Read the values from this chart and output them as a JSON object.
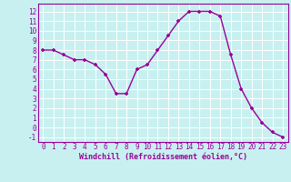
{
  "x": [
    0,
    1,
    2,
    3,
    4,
    5,
    6,
    7,
    8,
    9,
    10,
    11,
    12,
    13,
    14,
    15,
    16,
    17,
    18,
    19,
    20,
    21,
    22,
    23
  ],
  "y": [
    8,
    8,
    7.5,
    7,
    7,
    6.5,
    5.5,
    3.5,
    3.5,
    6,
    6.5,
    8,
    9.5,
    11,
    12,
    12,
    12,
    11.5,
    7.5,
    4,
    2,
    0.5,
    -0.5,
    -1
  ],
  "line_color": "#990099",
  "marker": "+",
  "bg_color": "#c8f0f0",
  "xlabel": "Windchill (Refroidissement éolien,°C)",
  "xlabel_color": "#990099",
  "tick_color": "#990099",
  "grid_color": "#ffffff",
  "ylim": [
    -1.5,
    12.8
  ],
  "xlim": [
    -0.5,
    23.5
  ],
  "yticks": [
    -1,
    0,
    1,
    2,
    3,
    4,
    5,
    6,
    7,
    8,
    9,
    10,
    11,
    12
  ],
  "xticks": [
    0,
    1,
    2,
    3,
    4,
    5,
    6,
    7,
    8,
    9,
    10,
    11,
    12,
    13,
    14,
    15,
    16,
    17,
    18,
    19,
    20,
    21,
    22,
    23
  ],
  "tick_fontsize": 5.5,
  "xlabel_fontsize": 6
}
